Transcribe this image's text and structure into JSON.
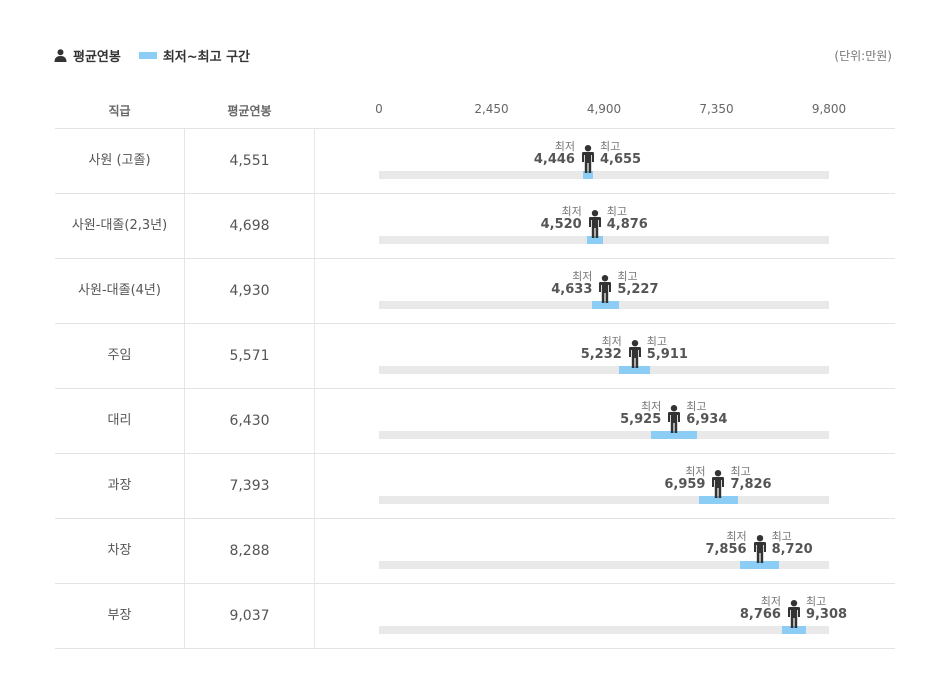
{
  "legend": {
    "avg_label": "평균연봉",
    "range_label": "최저~최고 구간"
  },
  "unit": "(단위:만원)",
  "header": {
    "col_title": "직급",
    "col_avg": "평균연봉"
  },
  "colors": {
    "range": "#8ccdf6",
    "track": "#e9e9e9",
    "person": "#333333"
  },
  "chart_data": {
    "type": "range",
    "xlim": [
      0,
      9800
    ],
    "ticks": [
      "0",
      "2,450",
      "4,900",
      "7,350",
      "9,800"
    ],
    "tick_values": [
      0,
      2450,
      4900,
      7350,
      9800
    ],
    "min_label": "최저",
    "max_label": "최고",
    "rows": [
      {
        "title": "사원 (고졸)",
        "avg": 4551,
        "avg_label": "4,551",
        "min": 4446,
        "min_label": "4,446",
        "max": 4655,
        "max_label": "4,655"
      },
      {
        "title": "사원-대졸(2,3년)",
        "avg": 4698,
        "avg_label": "4,698",
        "min": 4520,
        "min_label": "4,520",
        "max": 4876,
        "max_label": "4,876"
      },
      {
        "title": "사원-대졸(4년)",
        "avg": 4930,
        "avg_label": "4,930",
        "min": 4633,
        "min_label": "4,633",
        "max": 5227,
        "max_label": "5,227"
      },
      {
        "title": "주임",
        "avg": 5571,
        "avg_label": "5,571",
        "min": 5232,
        "min_label": "5,232",
        "max": 5911,
        "max_label": "5,911"
      },
      {
        "title": "대리",
        "avg": 6430,
        "avg_label": "6,430",
        "min": 5925,
        "min_label": "5,925",
        "max": 6934,
        "max_label": "6,934"
      },
      {
        "title": "과장",
        "avg": 7393,
        "avg_label": "7,393",
        "min": 6959,
        "min_label": "6,959",
        "max": 7826,
        "max_label": "7,826"
      },
      {
        "title": "차장",
        "avg": 8288,
        "avg_label": "8,288",
        "min": 7856,
        "min_label": "7,856",
        "max": 8720,
        "max_label": "8,720"
      },
      {
        "title": "부장",
        "avg": 9037,
        "avg_label": "9,037",
        "min": 8766,
        "min_label": "8,766",
        "max": 9308,
        "max_label": "9,308"
      }
    ]
  }
}
